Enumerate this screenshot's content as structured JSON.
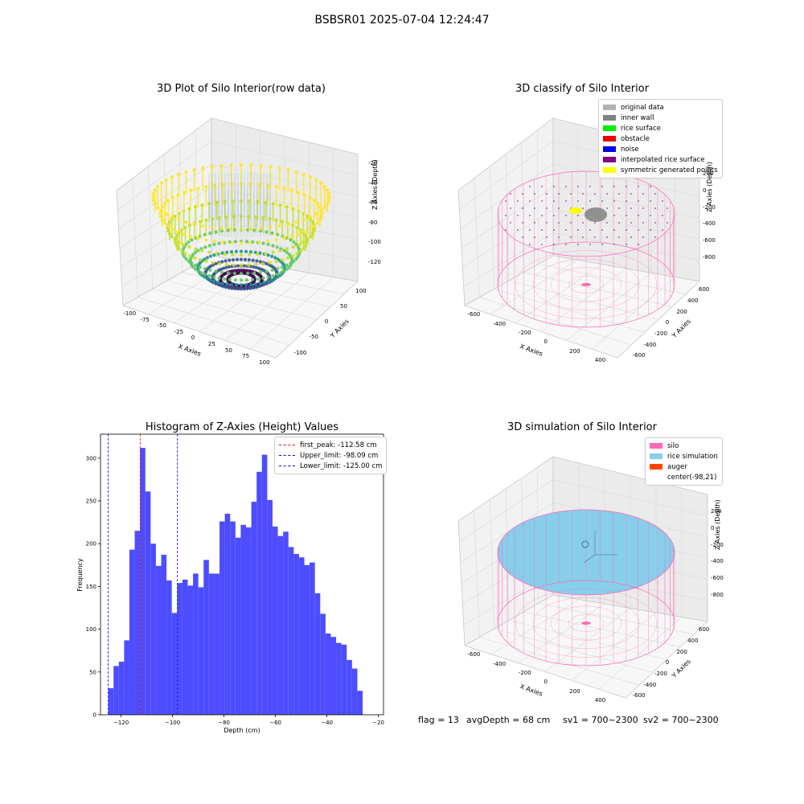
{
  "figure_title": "BSBSR01 2025-07-04 12:24:47",
  "panels": {
    "raw": {
      "title": "3D Plot of Silo Interior(row data)",
      "xlabel": "X Axies",
      "ylabel": "Y Axies",
      "zlabel": "Z Axies (Depth)",
      "xticks": [
        "-100",
        "-75",
        "-50",
        "-25",
        "0",
        "25",
        "50",
        "75",
        "100"
      ],
      "yticks": [
        "100",
        "50",
        "0",
        "-50",
        "-100"
      ],
      "zticks": [
        "-20",
        "-40",
        "-60",
        "-80",
        "-100",
        "-120"
      ]
    },
    "classify": {
      "title": "3D classify of Silo Interior",
      "xlabel": "X Axies",
      "ylabel": "Y Axies",
      "zlabel": "Z Axies (Depth)",
      "xticks": [
        "-600",
        "-400",
        "-200",
        "0",
        "200",
        "400"
      ],
      "yticks": [
        "600",
        "400",
        "200",
        "0",
        "-200",
        "-400",
        "-600"
      ],
      "zticks": [
        "200",
        "0",
        "-200",
        "-400",
        "-600",
        "-800"
      ],
      "legend": [
        {
          "label": "original data",
          "color": "#b3b3b3"
        },
        {
          "label": "inner wall",
          "color": "#808080"
        },
        {
          "label": "rice surface",
          "color": "#00ee00"
        },
        {
          "label": "obstacle",
          "color": "#ee0000"
        },
        {
          "label": "noise",
          "color": "#0000ee"
        },
        {
          "label": "interpolated rice surface",
          "color": "#800080"
        },
        {
          "label": "symmetric generated points",
          "color": "#ffff00"
        }
      ]
    },
    "simulation": {
      "title": "3D simulation of Silo Interior",
      "xlabel": "X Axies",
      "ylabel": "Y Axies",
      "zlabel": "Z Axies (Depth)",
      "xticks": [
        "-600",
        "-400",
        "-200",
        "0",
        "200",
        "400"
      ],
      "yticks": [
        "600",
        "400",
        "200",
        "0",
        "-200",
        "-400",
        "-600"
      ],
      "zticks": [
        "200",
        "0",
        "-200",
        "-400",
        "-600",
        "-800"
      ],
      "legend": [
        {
          "label": "silo",
          "color": "#ff69b4"
        },
        {
          "label": "rice simulation",
          "color": "#87ceeb"
        },
        {
          "label": "auger",
          "color": "#ff4500"
        },
        {
          "label": "center(-98,21)",
          "color": "#ffffff"
        }
      ]
    }
  },
  "chart_data": {
    "type": "bar",
    "title": "Histogram of Z-Axies (Height) Values",
    "xlabel": "Depth (cm)",
    "ylabel": "Frequency",
    "xlim": [
      -128,
      -18
    ],
    "ylim": [
      0,
      328
    ],
    "xticks": [
      -120,
      -100,
      -80,
      -60,
      -40,
      -20
    ],
    "xtick_labels": [
      "−120",
      "−100",
      "−80",
      "−60",
      "−40",
      "−20"
    ],
    "yticks": [
      0,
      50,
      100,
      150,
      200,
      250,
      300
    ],
    "bar_color": "#4d4dff",
    "bin_start": -125.0,
    "bin_width": 2.06,
    "values": [
      31,
      57,
      62,
      87,
      193,
      215,
      312,
      261,
      200,
      174,
      187,
      157,
      119,
      154,
      158,
      151,
      165,
      149,
      181,
      165,
      165,
      226,
      235,
      226,
      207,
      222,
      219,
      249,
      284,
      304,
      251,
      220,
      209,
      214,
      196,
      188,
      184,
      175,
      178,
      142,
      118,
      95,
      91,
      84,
      82,
      64,
      54,
      28
    ],
    "vlines": [
      {
        "label": "first_peak: -112.58 cm",
        "x": -112.58,
        "color": "#ff0000"
      },
      {
        "label": "Upper_limit: -98.09 cm",
        "x": -98.09,
        "color": "#0000ff"
      },
      {
        "label": "Lower_limit: -125.00 cm",
        "x": -125.0,
        "color": "#0000ff"
      }
    ],
    "legend_position": "upper right"
  },
  "footer": {
    "flag": "flag = 13",
    "avg_depth": "avgDepth = 68 cm",
    "sv1": "sv1 = 700~2300",
    "sv2": "sv2 = 700~2300"
  }
}
